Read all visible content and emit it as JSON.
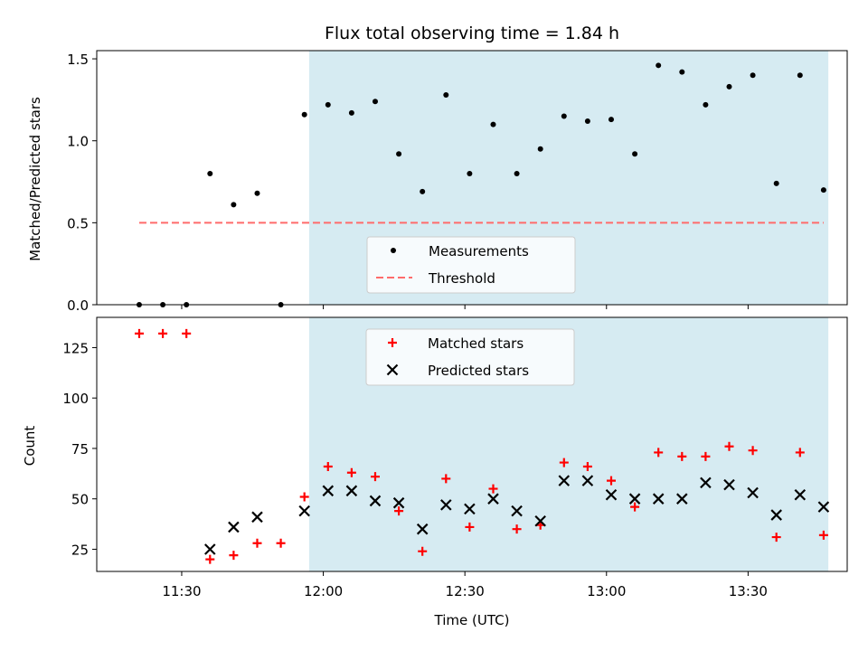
{
  "title": "Flux total observing time = 1.84 h",
  "xlabel": "Time (UTC)",
  "x_tick_labels": [
    "11:30",
    "12:00",
    "12:30",
    "13:00",
    "13:30"
  ],
  "colors": {
    "shade": "#add8e6",
    "measurement": "#000000",
    "threshold": "#ff6b6b",
    "matched": "#ff0000",
    "predicted": "#000000"
  },
  "chart_data": [
    {
      "type": "scatter",
      "ylabel": "Matched/Predicted stars",
      "xlim": [
        "11:12",
        "13:51"
      ],
      "ylim": [
        0,
        1.55
      ],
      "y_ticks": [
        "0.0",
        "0.5",
        "1.0",
        "1.5"
      ],
      "shaded_span": [
        "11:57",
        "13:47"
      ],
      "legend_location": "bottom-center",
      "series": [
        {
          "name": "Measurements",
          "marker": "dot",
          "x": [
            "11:21",
            "11:26",
            "11:31",
            "11:36",
            "11:41",
            "11:46",
            "11:51",
            "11:56",
            "12:01",
            "12:06",
            "12:11",
            "12:16",
            "12:21",
            "12:26",
            "12:31",
            "12:36",
            "12:41",
            "12:46",
            "12:51",
            "12:56",
            "13:01",
            "13:06",
            "13:11",
            "13:16",
            "13:21",
            "13:26",
            "13:31",
            "13:36",
            "13:41",
            "13:46"
          ],
          "y": [
            0.0,
            0.0,
            0.0,
            0.8,
            0.61,
            0.68,
            0.0,
            1.16,
            1.22,
            1.17,
            1.24,
            0.92,
            0.69,
            1.28,
            0.8,
            1.1,
            0.8,
            0.95,
            1.15,
            1.12,
            1.13,
            0.92,
            1.46,
            1.42,
            1.22,
            1.33,
            1.4,
            0.74,
            1.4,
            0.7
          ]
        },
        {
          "name": "Threshold",
          "style": "dashed",
          "x": [
            "11:21",
            "13:46"
          ],
          "y": [
            0.5,
            0.5
          ]
        }
      ]
    },
    {
      "type": "scatter",
      "ylabel": "Count",
      "xlim": [
        "11:12",
        "13:51"
      ],
      "ylim": [
        14,
        140
      ],
      "y_ticks": [
        "25",
        "50",
        "75",
        "100",
        "125"
      ],
      "shaded_span": [
        "11:57",
        "13:47"
      ],
      "legend_location": "top-center",
      "series": [
        {
          "name": "Matched stars",
          "marker": "plus",
          "x": [
            "11:21",
            "11:26",
            "11:31",
            "11:36",
            "11:41",
            "11:46",
            "11:51",
            "11:56",
            "12:01",
            "12:06",
            "12:11",
            "12:16",
            "12:21",
            "12:26",
            "12:31",
            "12:36",
            "12:41",
            "12:46",
            "12:51",
            "12:56",
            "13:01",
            "13:06",
            "13:11",
            "13:16",
            "13:21",
            "13:26",
            "13:31",
            "13:36",
            "13:41",
            "13:46"
          ],
          "y": [
            132,
            132,
            132,
            20,
            22,
            28,
            28,
            51,
            66,
            63,
            61,
            44,
            24,
            60,
            36,
            55,
            35,
            37,
            68,
            66,
            59,
            46,
            73,
            71,
            71,
            76,
            74,
            31,
            73,
            32
          ]
        },
        {
          "name": "Predicted stars",
          "marker": "x",
          "x": [
            "11:36",
            "11:41",
            "11:46",
            "11:56",
            "12:01",
            "12:06",
            "12:11",
            "12:16",
            "12:21",
            "12:26",
            "12:31",
            "12:36",
            "12:41",
            "12:46",
            "12:51",
            "12:56",
            "13:01",
            "13:06",
            "13:11",
            "13:16",
            "13:21",
            "13:26",
            "13:31",
            "13:36",
            "13:41",
            "13:46"
          ],
          "y": [
            25,
            36,
            41,
            44,
            54,
            54,
            49,
            48,
            35,
            47,
            45,
            50,
            44,
            39,
            59,
            59,
            52,
            50,
            50,
            50,
            58,
            57,
            53,
            42,
            52,
            46
          ]
        }
      ]
    }
  ]
}
